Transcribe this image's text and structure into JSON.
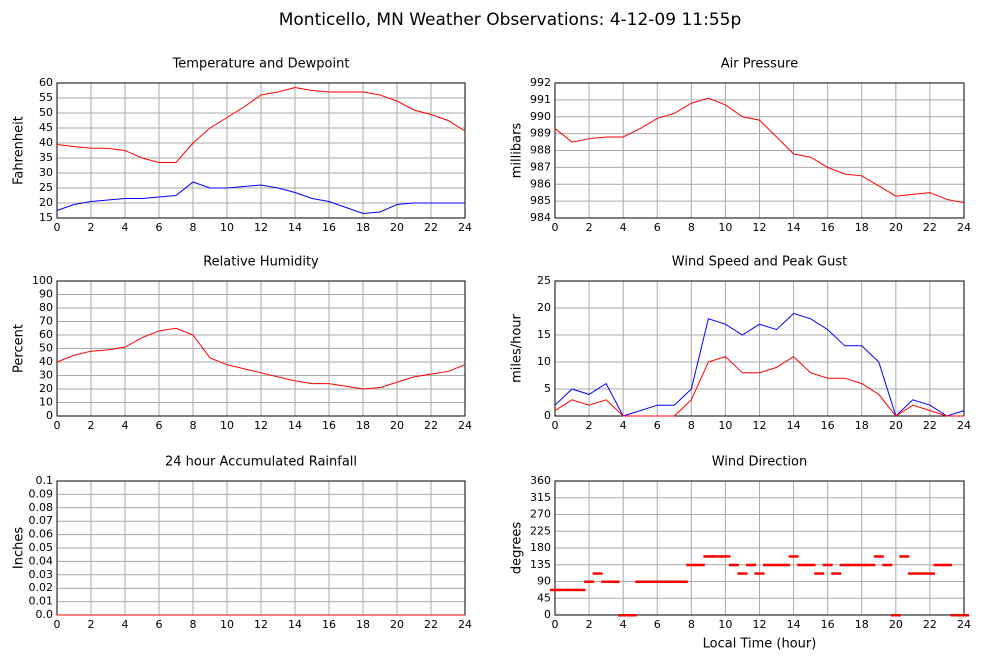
{
  "title": "Monticello, MN Weather Observations: 4-12-09 11:55p",
  "chart_data": [
    {
      "type": "line",
      "title": "Temperature and Dewpoint",
      "ylabel": "Fahrenheit",
      "grid": true,
      "x": [
        0,
        1,
        2,
        3,
        4,
        5,
        6,
        7,
        8,
        9,
        10,
        11,
        12,
        13,
        14,
        15,
        16,
        17,
        18,
        19,
        20,
        21,
        22,
        23,
        24
      ],
      "xlim": [
        0,
        24
      ],
      "xticks": [
        0,
        2,
        4,
        6,
        8,
        10,
        12,
        14,
        16,
        18,
        20,
        22,
        24
      ],
      "ylim": [
        15,
        60
      ],
      "yticks": [
        15,
        20,
        25,
        30,
        35,
        40,
        45,
        50,
        55,
        60
      ],
      "series": [
        {
          "color": "#ff0000",
          "values": [
            39.5,
            38.8,
            38.3,
            38.2,
            37.5,
            35,
            33.5,
            33.5,
            40,
            45,
            48.5,
            52,
            56,
            57,
            58.5,
            57.5,
            57,
            57,
            57,
            56,
            54,
            51,
            49.5,
            47.5,
            44
          ]
        },
        {
          "color": "#0000ff",
          "values": [
            17.5,
            19.5,
            20.5,
            21,
            21.5,
            21.5,
            22,
            22.5,
            27,
            25,
            25,
            25.5,
            26,
            25,
            23.5,
            21.5,
            20.5,
            18.5,
            16.5,
            17,
            19.5,
            20,
            20,
            20,
            20
          ]
        }
      ]
    },
    {
      "type": "line",
      "title": "Air Pressure",
      "ylabel": "millibars",
      "grid": true,
      "x": [
        0,
        1,
        2,
        3,
        4,
        5,
        6,
        7,
        8,
        9,
        10,
        11,
        12,
        13,
        14,
        15,
        16,
        17,
        18,
        19,
        20,
        21,
        22,
        23,
        24
      ],
      "xlim": [
        0,
        24
      ],
      "xticks": [
        0,
        2,
        4,
        6,
        8,
        10,
        12,
        14,
        16,
        18,
        20,
        22,
        24
      ],
      "ylim": [
        984,
        992
      ],
      "yticks": [
        984,
        985,
        986,
        987,
        988,
        989,
        990,
        991,
        992
      ],
      "series": [
        {
          "color": "#ff0000",
          "values": [
            989.3,
            988.5,
            988.7,
            988.8,
            988.8,
            989.3,
            989.9,
            990.2,
            990.8,
            991.1,
            990.7,
            990,
            989.8,
            988.8,
            987.8,
            987.6,
            987,
            986.6,
            986.5,
            985.9,
            985.3,
            985.4,
            985.5,
            985.1,
            984.9
          ]
        }
      ]
    },
    {
      "type": "line",
      "title": "Relative Humidity",
      "ylabel": "Percent",
      "grid": true,
      "x": [
        0,
        1,
        2,
        3,
        4,
        5,
        6,
        7,
        8,
        9,
        10,
        11,
        12,
        13,
        14,
        15,
        16,
        17,
        18,
        19,
        20,
        21,
        22,
        23,
        24
      ],
      "xlim": [
        0,
        24
      ],
      "xticks": [
        0,
        2,
        4,
        6,
        8,
        10,
        12,
        14,
        16,
        18,
        20,
        22,
        24
      ],
      "ylim": [
        0,
        100
      ],
      "yticks": [
        0,
        10,
        20,
        30,
        40,
        50,
        60,
        70,
        80,
        90,
        100
      ],
      "series": [
        {
          "color": "#ff0000",
          "values": [
            40,
            45,
            48,
            49,
            51,
            58,
            63,
            65,
            60,
            43,
            38,
            35,
            32,
            29,
            26,
            24,
            24,
            22,
            20,
            21,
            25,
            29,
            31,
            33,
            38
          ]
        }
      ]
    },
    {
      "type": "line",
      "title": "Wind Speed and Peak Gust",
      "ylabel": "miles/hour",
      "grid": true,
      "x": [
        0,
        1,
        2,
        3,
        4,
        5,
        6,
        7,
        8,
        9,
        10,
        11,
        12,
        13,
        14,
        15,
        16,
        17,
        18,
        19,
        20,
        21,
        22,
        23,
        24
      ],
      "xlim": [
        0,
        24
      ],
      "xticks": [
        0,
        2,
        4,
        6,
        8,
        10,
        12,
        14,
        16,
        18,
        20,
        22,
        24
      ],
      "ylim": [
        0,
        25
      ],
      "yticks": [
        0,
        5,
        10,
        15,
        20,
        25
      ],
      "series": [
        {
          "color": "#0000ff",
          "values": [
            2,
            5,
            4,
            6,
            0,
            1,
            2,
            2,
            5,
            18,
            17,
            15,
            17,
            16,
            19,
            18,
            16,
            13,
            13,
            10,
            0,
            3,
            2,
            0,
            1
          ]
        },
        {
          "color": "#ff0000",
          "values": [
            1,
            3,
            2,
            3,
            0,
            0,
            0,
            0,
            3,
            10,
            11,
            8,
            8,
            9,
            11,
            8,
            7,
            7,
            6,
            4,
            0,
            2,
            1,
            0,
            0
          ]
        }
      ]
    },
    {
      "type": "line",
      "title": "24 hour Accumulated Rainfall",
      "ylabel": "Inches",
      "grid": true,
      "x": [
        0,
        24
      ],
      "xlim": [
        0,
        24
      ],
      "xticks": [
        0,
        2,
        4,
        6,
        8,
        10,
        12,
        14,
        16,
        18,
        20,
        22,
        24
      ],
      "ylim": [
        0,
        0.1
      ],
      "yticks": [
        {
          "value": 0,
          "label": "0.0"
        },
        0.01,
        0.02,
        0.03,
        0.04,
        0.05,
        0.06,
        0.07,
        0.08,
        0.09,
        0.1
      ],
      "series": [
        {
          "color": "#ff0000",
          "values": [
            0,
            0
          ]
        }
      ]
    },
    {
      "type": "scatter",
      "title": "Wind Direction",
      "ylabel": "degrees",
      "xlabel": "Local Time (hour)",
      "grid": true,
      "x": [
        0,
        0.5,
        1,
        1.5,
        2,
        2.5,
        3,
        3.5,
        4,
        4.5,
        5,
        5.5,
        6,
        6.5,
        7,
        7.5,
        8,
        8.5,
        9,
        9.5,
        10,
        10.5,
        11,
        11.5,
        12,
        12.5,
        13,
        13.5,
        14,
        14.5,
        15,
        15.5,
        16,
        16.5,
        17,
        17.5,
        18,
        18.5,
        19,
        19.5,
        20,
        20.5,
        21,
        21.5,
        22,
        22.5,
        23,
        23.5,
        24
      ],
      "xlim": [
        0,
        24
      ],
      "xticks": [
        0,
        2,
        4,
        6,
        8,
        10,
        12,
        14,
        16,
        18,
        20,
        22,
        24
      ],
      "ylim": [
        0,
        360
      ],
      "yticks": [
        0,
        45,
        90,
        135,
        180,
        225,
        270,
        315,
        360
      ],
      "series": [
        {
          "color": "#ff0000",
          "values": [
            68,
            68,
            68,
            68,
            90,
            112,
            90,
            90,
            0,
            0,
            90,
            90,
            90,
            90,
            90,
            90,
            135,
            135,
            158,
            158,
            158,
            135,
            112,
            135,
            112,
            135,
            135,
            135,
            158,
            135,
            135,
            112,
            135,
            112,
            135,
            135,
            135,
            135,
            158,
            135,
            0,
            158,
            112,
            112,
            112,
            135,
            135,
            0,
            0
          ]
        }
      ]
    }
  ]
}
